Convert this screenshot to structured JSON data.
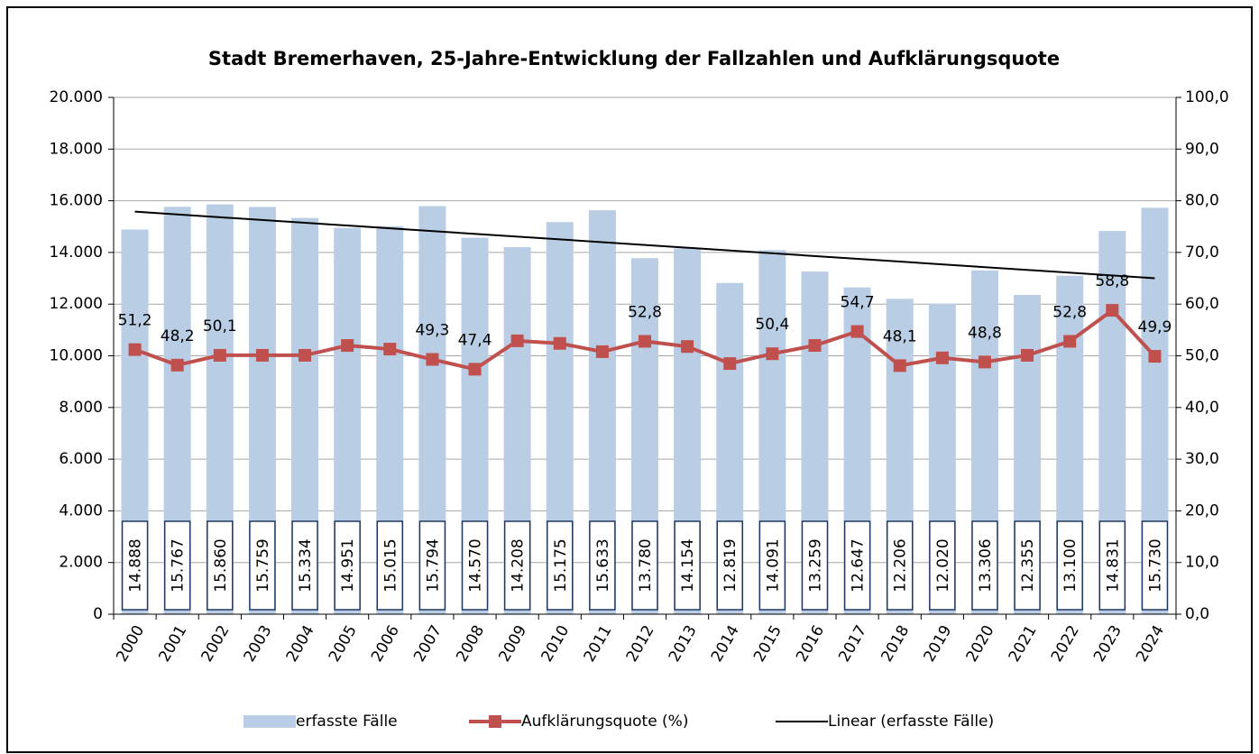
{
  "chart_data": {
    "type": "bar-line",
    "title": "Stadt Bremerhaven, 25-Jahre-Entwicklung der Fallzahlen und Aufklärungsquote",
    "categories": [
      "2000",
      "2001",
      "2002",
      "2003",
      "2004",
      "2005",
      "2006",
      "2007",
      "2008",
      "2009",
      "2010",
      "2011",
      "2012",
      "2013",
      "2014",
      "2015",
      "2016",
      "2017",
      "2018",
      "2019",
      "2020",
      "2021",
      "2022",
      "2023",
      "2024"
    ],
    "series": [
      {
        "name": "erfasste Fälle",
        "type": "bar",
        "color": "#b9cde5",
        "values": [
          14888,
          15767,
          15860,
          15759,
          15334,
          14951,
          15015,
          15794,
          14570,
          14208,
          15175,
          15633,
          13780,
          14154,
          12819,
          14091,
          13259,
          12647,
          12206,
          12020,
          13306,
          12355,
          13100,
          14831,
          15730
        ],
        "value_labels": [
          "14.888",
          "15.767",
          "15.860",
          "15.759",
          "15.334",
          "14.951",
          "15.015",
          "15.794",
          "14.570",
          "14.208",
          "15.175",
          "15.633",
          "13.780",
          "14.154",
          "12.819",
          "14.091",
          "13.259",
          "12.647",
          "12.206",
          "12.020",
          "13.306",
          "12.355",
          "13.100",
          "14.831",
          "15.730"
        ]
      },
      {
        "name": "Aufklärungsquote (%)",
        "type": "line",
        "axis": "y2",
        "color": "#c0504d",
        "values": [
          51.2,
          48.2,
          50.1,
          50.1,
          50.1,
          52.0,
          51.3,
          49.3,
          47.4,
          52.9,
          52.4,
          50.8,
          52.8,
          51.8,
          48.5,
          50.4,
          52.0,
          54.7,
          48.1,
          49.6,
          48.8,
          50.1,
          52.8,
          58.8,
          49.9
        ],
        "value_labels": [
          "51,2",
          "48,2",
          "50,1",
          null,
          null,
          null,
          null,
          "49,3",
          "47,4",
          null,
          null,
          null,
          "52,8",
          null,
          null,
          "50,4",
          null,
          "54,7",
          "48,1",
          null,
          "48,8",
          null,
          "52,8",
          "58,8",
          "49,9"
        ]
      },
      {
        "name": "Linear (erfasste Fälle)",
        "type": "trend",
        "color": "#000000"
      }
    ],
    "ylim": [
      0,
      20000
    ],
    "yticks": [
      {
        "value": 0,
        "label": "0"
      },
      {
        "value": 2000,
        "label": "2.000"
      },
      {
        "value": 4000,
        "label": "4.000"
      },
      {
        "value": 6000,
        "label": "6.000"
      },
      {
        "value": 8000,
        "label": "8.000"
      },
      {
        "value": 10000,
        "label": "10.000"
      },
      {
        "value": 12000,
        "label": "12.000"
      },
      {
        "value": 14000,
        "label": "14.000"
      },
      {
        "value": 16000,
        "label": "16.000"
      },
      {
        "value": 18000,
        "label": "18.000"
      },
      {
        "value": 20000,
        "label": "20.000"
      }
    ],
    "y2lim": [
      0,
      100
    ],
    "y2ticks": [
      {
        "value": 0,
        "label": "0,0"
      },
      {
        "value": 10,
        "label": "10,0"
      },
      {
        "value": 20,
        "label": "20,0"
      },
      {
        "value": 30,
        "label": "30,0"
      },
      {
        "value": 40,
        "label": "40,0"
      },
      {
        "value": 50,
        "label": "50,0"
      },
      {
        "value": 60,
        "label": "60,0"
      },
      {
        "value": 70,
        "label": "70,0"
      },
      {
        "value": 80,
        "label": "80,0"
      },
      {
        "value": 90,
        "label": "90,0"
      },
      {
        "value": 100,
        "label": "100,0"
      }
    ],
    "grid": true,
    "legend": "bottom"
  }
}
